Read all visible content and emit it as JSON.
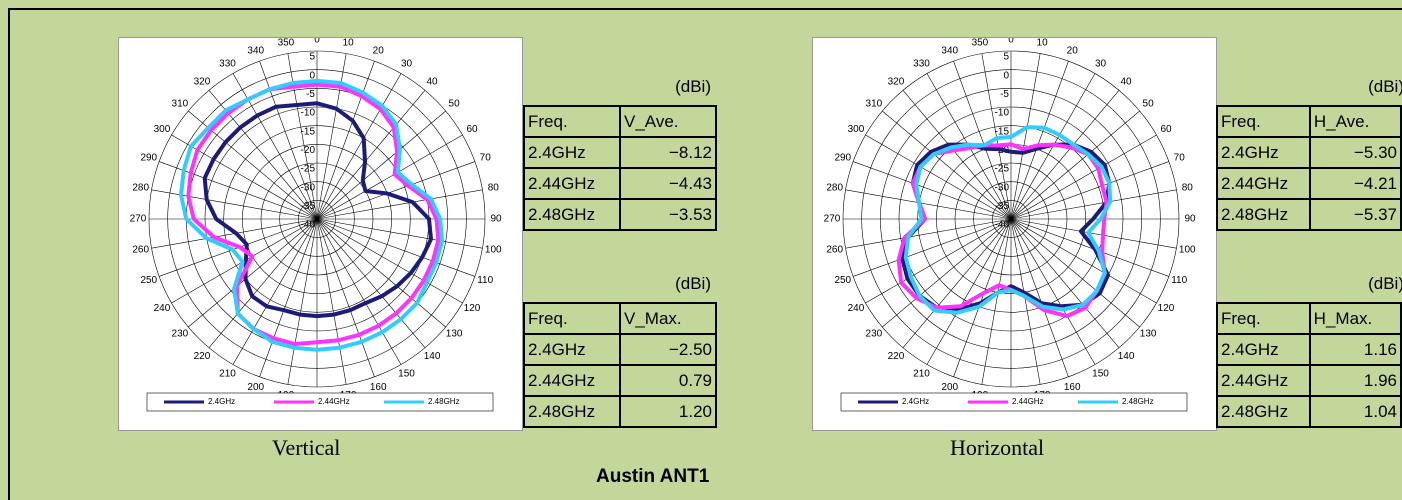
{
  "title": "Austin ANT1",
  "captions": [
    "Vertical",
    "Horizontal"
  ],
  "chart_data": [
    {
      "type": "polar",
      "ylim": [
        -40,
        5
      ],
      "yticks": [
        -40,
        -35,
        -30,
        -25,
        -20,
        -15,
        -10,
        -5,
        0,
        5
      ],
      "x": [
        0,
        10,
        20,
        30,
        40,
        50,
        60,
        70,
        80,
        90,
        100,
        110,
        120,
        130,
        140,
        150,
        160,
        170,
        180,
        190,
        200,
        210,
        220,
        230,
        240,
        250,
        260,
        270,
        280,
        290,
        300,
        310,
        320,
        330,
        340,
        350
      ],
      "xticks": [
        0,
        10,
        20,
        30,
        40,
        50,
        60,
        70,
        80,
        90,
        100,
        110,
        120,
        130,
        140,
        150,
        160,
        170,
        180,
        190,
        200,
        210,
        220,
        230,
        240,
        250,
        260,
        270,
        280,
        290,
        300,
        310,
        320,
        330,
        340,
        350
      ],
      "series": [
        {
          "name": "2.4GHz",
          "color": "#1c1c78",
          "values": [
            -9,
            -10,
            -12,
            -15,
            -20,
            -24,
            -25,
            -20,
            -14,
            -10,
            -9,
            -10,
            -11,
            -12,
            -13,
            -14,
            -14,
            -14,
            -14,
            -14,
            -14,
            -13,
            -13,
            -15,
            -18,
            -20,
            -18,
            -13,
            -10,
            -8,
            -8,
            -8,
            -8,
            -8,
            -8,
            -9
          ]
        },
        {
          "name": "2.44GHz",
          "color": "#ff33ff",
          "values": [
            -4,
            -4,
            -5,
            -6,
            -8,
            -12,
            -16,
            -14,
            -10,
            -8,
            -7,
            -7,
            -7,
            -7,
            -7,
            -7,
            -7,
            -7,
            -7,
            -6,
            -6,
            -6,
            -7,
            -12,
            -20,
            -18,
            -12,
            -7,
            -5,
            -4,
            -3,
            -3,
            -3,
            -3,
            -3,
            -4
          ]
        },
        {
          "name": "2.48GHz",
          "color": "#33ccff",
          "values": [
            -3,
            -3,
            -4,
            -5,
            -7,
            -11,
            -15,
            -13,
            -9,
            -7,
            -6,
            -6,
            -6,
            -5,
            -5,
            -5,
            -5,
            -5,
            -5,
            -5,
            -5,
            -6,
            -7,
            -11,
            -17,
            -16,
            -10,
            -5,
            -3,
            -2,
            -1,
            -2,
            -2,
            -3,
            -3,
            -3
          ]
        }
      ]
    },
    {
      "type": "polar",
      "ylim": [
        -40,
        5
      ],
      "yticks": [
        -40,
        -35,
        -30,
        -25,
        -20,
        -15,
        -10,
        -5,
        0,
        5
      ],
      "x": [
        0,
        10,
        20,
        30,
        40,
        50,
        60,
        70,
        80,
        90,
        100,
        110,
        120,
        130,
        140,
        150,
        160,
        170,
        180,
        190,
        200,
        210,
        220,
        230,
        240,
        250,
        260,
        270,
        280,
        290,
        300,
        310,
        320,
        330,
        340,
        350
      ],
      "xticks": [
        0,
        10,
        20,
        30,
        40,
        50,
        60,
        70,
        80,
        90,
        100,
        110,
        120,
        130,
        140,
        150,
        160,
        170,
        180,
        190,
        200,
        210,
        220,
        230,
        240,
        250,
        260,
        270,
        280,
        290,
        300,
        310,
        320,
        330,
        340,
        350
      ],
      "series": [
        {
          "name": "2.4GHz",
          "color": "#1c1c78",
          "values": [
            -22,
            -22,
            -20,
            -17,
            -14,
            -12,
            -11,
            -12,
            -14,
            -18,
            -21,
            -16,
            -10,
            -9,
            -10,
            -13,
            -16,
            -20,
            -22,
            -20,
            -16,
            -12,
            -9,
            -8,
            -8,
            -9,
            -12,
            -17,
            -15,
            -12,
            -11,
            -12,
            -14,
            -17,
            -20,
            -21
          ]
        },
        {
          "name": "2.44GHz",
          "color": "#ff33ff",
          "values": [
            -20,
            -21,
            -19,
            -17,
            -15,
            -13,
            -13,
            -14,
            -14,
            -15,
            -15,
            -14,
            -11,
            -10,
            -9,
            -10,
            -14,
            -19,
            -21,
            -22,
            -19,
            -13,
            -9,
            -7,
            -6,
            -8,
            -11,
            -17,
            -15,
            -12,
            -12,
            -13,
            -16,
            -18,
            -19,
            -20
          ]
        },
        {
          "name": "2.48GHz",
          "color": "#33ccff",
          "values": [
            -18,
            -15,
            -14,
            -14,
            -14,
            -13,
            -12,
            -12,
            -13,
            -16,
            -19,
            -15,
            -11,
            -10,
            -10,
            -12,
            -15,
            -19,
            -21,
            -20,
            -15,
            -11,
            -8,
            -8,
            -9,
            -10,
            -12,
            -16,
            -15,
            -13,
            -12,
            -13,
            -15,
            -17,
            -19,
            -18
          ]
        }
      ]
    }
  ],
  "tables": [
    {
      "unit": "(dBi)",
      "header": [
        "Freq.",
        "V_Ave."
      ],
      "rows": [
        [
          "2.4GHz",
          "−8.12"
        ],
        [
          "2.44GHz",
          "−4.43"
        ],
        [
          "2.48GHz",
          "−3.53"
        ]
      ]
    },
    {
      "unit": "(dBi)",
      "header": [
        "Freq.",
        "V_Max."
      ],
      "rows": [
        [
          "2.4GHz",
          "−2.50"
        ],
        [
          "2.44GHz",
          "0.79"
        ],
        [
          "2.48GHz",
          "1.20"
        ]
      ]
    },
    {
      "unit": "(dBi)",
      "header": [
        "Freq.",
        "H_Ave."
      ],
      "rows": [
        [
          "2.4GHz",
          "−5.30"
        ],
        [
          "2.44GHz",
          "−4.21"
        ],
        [
          "2.48GHz",
          "−5.37"
        ]
      ]
    },
    {
      "unit": "(dBi)",
      "header": [
        "Freq.",
        "H_Max."
      ],
      "rows": [
        [
          "2.4GHz",
          "1.16"
        ],
        [
          "2.44GHz",
          "1.96"
        ],
        [
          "2.48GHz",
          "1.04"
        ]
      ]
    }
  ]
}
